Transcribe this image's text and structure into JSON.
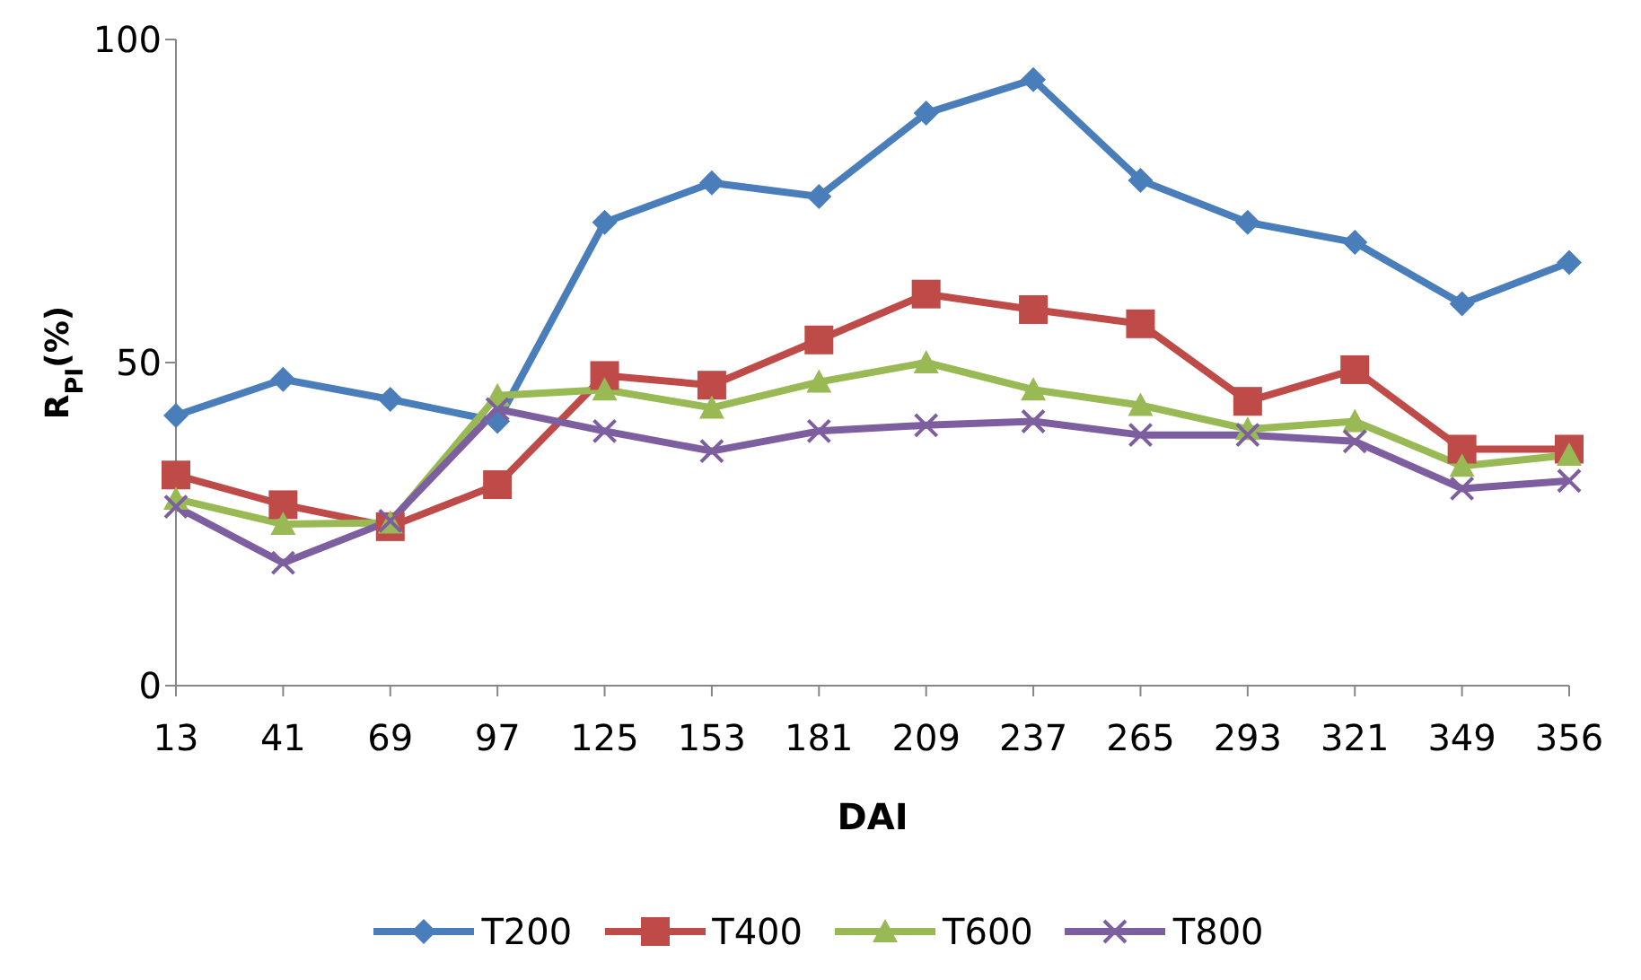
{
  "chart_data": {
    "type": "line",
    "xlabel": "DAI",
    "ylabel": "R$_{PI}$(%)",
    "categories": [
      "13",
      "41",
      "69",
      "97",
      "125",
      "153",
      "181",
      "209",
      "237",
      "265",
      "293",
      "321",
      "349",
      "356"
    ],
    "ylim": [
      0,
      100
    ],
    "yticks": [
      0,
      50,
      100
    ],
    "grid": false,
    "legend": "bottom",
    "line_style": "solid",
    "series": [
      {
        "name": "T200",
        "color": "#4a7ebb",
        "marker": "diamond",
        "values": [
          41.8,
          47.4,
          44.3,
          40.9,
          71.7,
          77.8,
          75.7,
          88.6,
          93.8,
          78.2,
          71.7,
          68.6,
          59.1,
          65.5
        ]
      },
      {
        "name": "T400",
        "color": "#be4b48",
        "marker": "square",
        "values": [
          32.6,
          28,
          24.6,
          31.1,
          48,
          46.5,
          53.5,
          60.6,
          58.2,
          56,
          44,
          48.9,
          36.6,
          36.6
        ]
      },
      {
        "name": "T600",
        "color": "#98b954",
        "marker": "triangle",
        "values": [
          28.9,
          25,
          25.2,
          44.9,
          45.8,
          43,
          47,
          50,
          45.8,
          43.4,
          39.7,
          40.9,
          34,
          35.7
        ]
      },
      {
        "name": "T800",
        "color": "#7d5fa0",
        "marker": "cross",
        "values": [
          27.7,
          19,
          25.5,
          42.8,
          39.4,
          36.3,
          39.4,
          40.3,
          40.9,
          38.8,
          38.8,
          37.8,
          30.5,
          31.7
        ]
      }
    ]
  }
}
